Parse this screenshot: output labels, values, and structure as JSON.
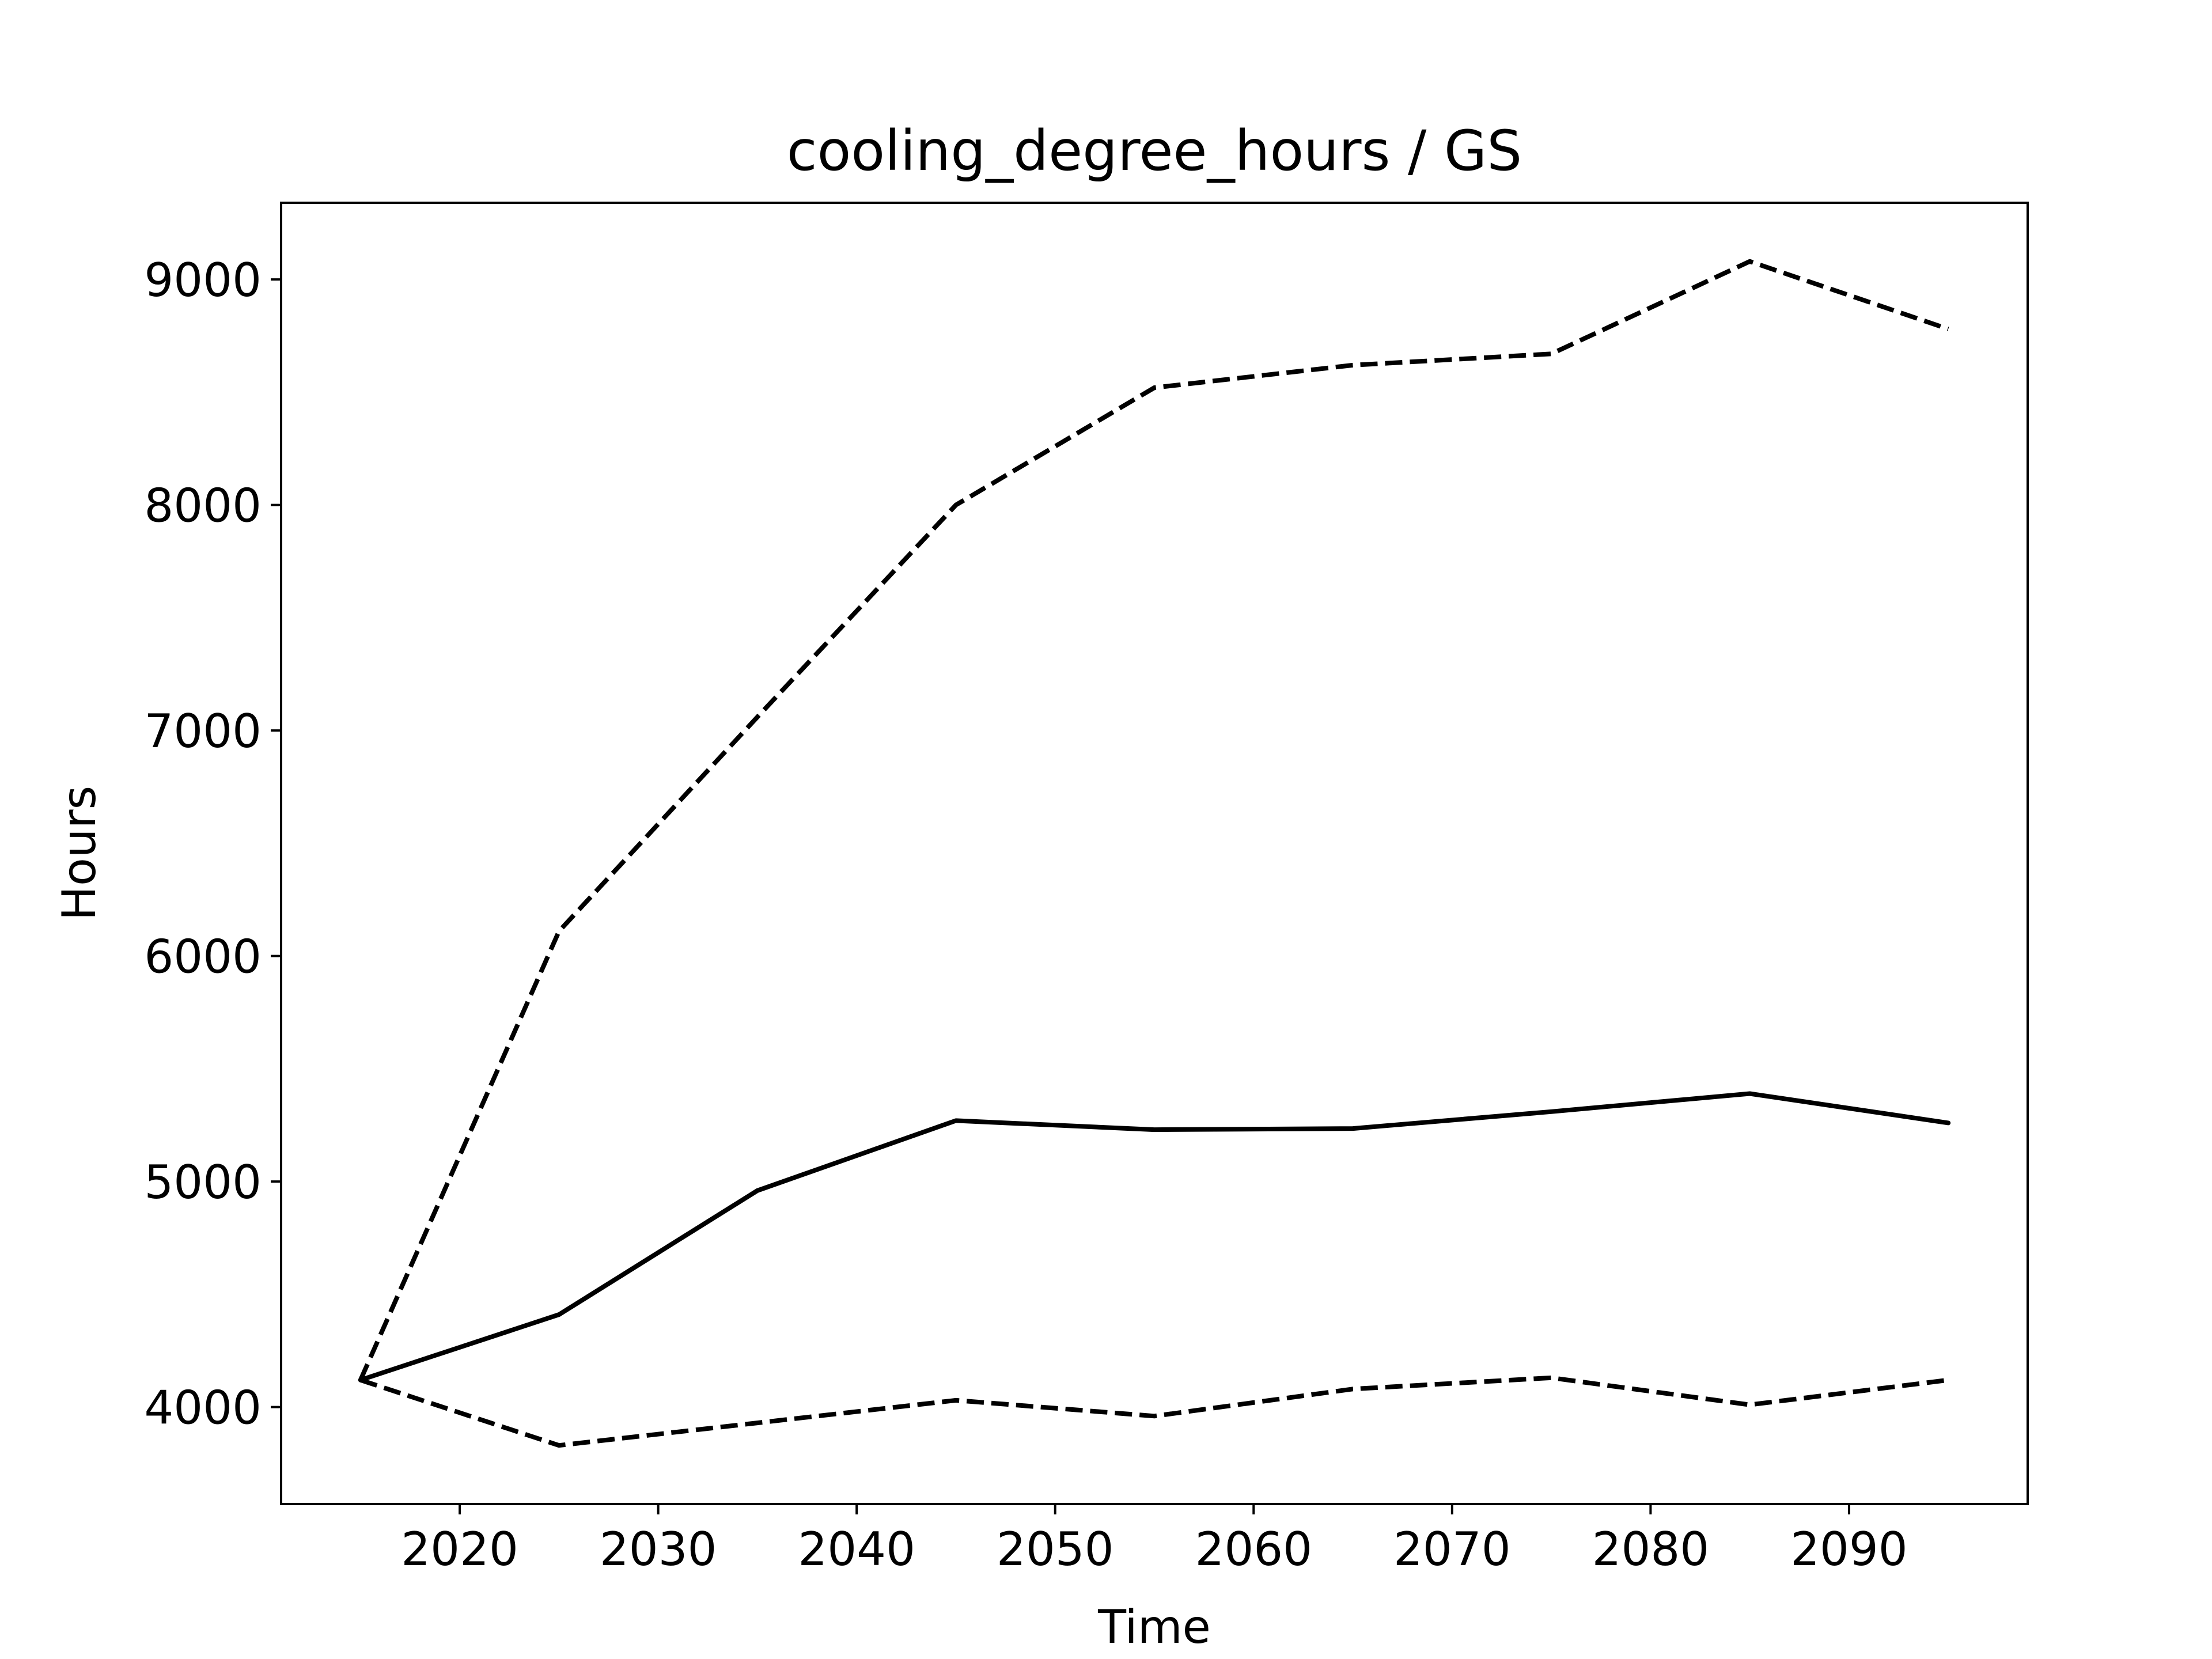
{
  "chart_data": {
    "type": "line",
    "title": "cooling_degree_hours / GS",
    "xlabel": "Time",
    "ylabel": "Hours",
    "xlim": [
      2011,
      2099
    ],
    "ylim": [
      3570,
      9340
    ],
    "xticks": [
      2020,
      2030,
      2040,
      2050,
      2060,
      2070,
      2080,
      2090
    ],
    "yticks": [
      4000,
      5000,
      6000,
      7000,
      8000,
      9000
    ],
    "grid": false,
    "legend": "none",
    "x": [
      2015,
      2025,
      2035,
      2045,
      2055,
      2065,
      2075,
      2085,
      2095
    ],
    "series": [
      {
        "line_style": "solid",
        "color": "#000000",
        "values": [
          4120,
          4410,
          4960,
          5270,
          5230,
          5235,
          5310,
          5390,
          5260
        ]
      },
      {
        "line_style": "dashed",
        "color": "#000000",
        "values": [
          4120,
          6110,
          7060,
          8000,
          8520,
          8620,
          8670,
          9080,
          8780
        ]
      },
      {
        "line_style": "dashed",
        "color": "#000000",
        "values": [
          4120,
          3830,
          3930,
          4030,
          3960,
          4080,
          4130,
          4010,
          4120
        ]
      }
    ]
  }
}
